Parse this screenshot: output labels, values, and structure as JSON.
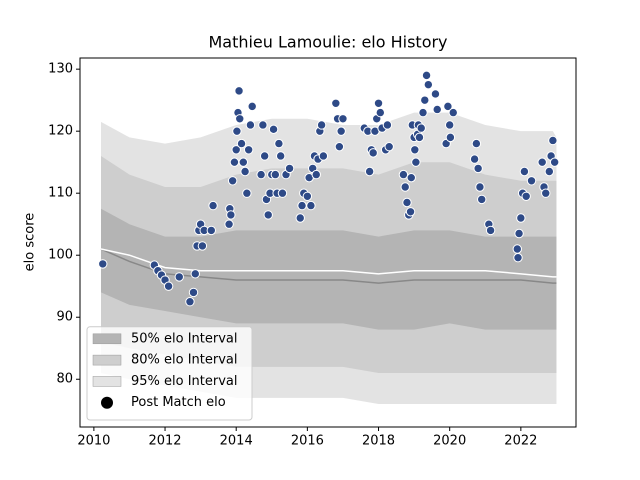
{
  "chart_data": {
    "type": "line",
    "title": "Mathieu Lamoulie: elo History",
    "ylabel": "elo score",
    "xlim": [
      2009.61,
      2023.55
    ],
    "ylim": [
      72.3,
      131.8
    ],
    "xticks": [
      2010,
      2012,
      2014,
      2016,
      2018,
      2020,
      2022
    ],
    "yticks": [
      80,
      90,
      100,
      110,
      120,
      130
    ],
    "legend": "lower left",
    "x": [
      2010.2,
      2011,
      2012,
      2013,
      2014,
      2015,
      2016,
      2017,
      2018,
      2019,
      2020,
      2021,
      2022,
      2022.9,
      2023
    ],
    "bands": [
      {
        "name": "50% elo Interval",
        "color": "#b4b4b4",
        "lower": [
          94,
          92,
          91,
          90,
          89,
          89,
          89,
          89,
          88,
          88,
          89,
          88,
          88,
          88,
          88
        ],
        "upper": [
          107.5,
          105,
          103,
          103,
          104,
          104,
          104,
          104,
          103,
          104,
          104,
          103,
          103,
          103,
          103
        ]
      },
      {
        "name": "80% elo Interval",
        "color": "#cecece",
        "lower": [
          86,
          85,
          84,
          83,
          82,
          82,
          82,
          82,
          81,
          81,
          81,
          81,
          81,
          81,
          81
        ],
        "upper": [
          116,
          113,
          111,
          111,
          113,
          114,
          114,
          114,
          113,
          115,
          115,
          113,
          112,
          112,
          112
        ]
      },
      {
        "name": "95% elo Interval",
        "color": "#e3e3e3",
        "lower": [
          81,
          80,
          79,
          78,
          77,
          77,
          77,
          77,
          76,
          76,
          76,
          76,
          76,
          76,
          76
        ],
        "upper": [
          121.5,
          119,
          118,
          119,
          121,
          122,
          122,
          121,
          121,
          123,
          123,
          121,
          120,
          120,
          119
        ]
      }
    ],
    "lines": [
      {
        "color": "#888888",
        "values": [
          101,
          99,
          97,
          96.5,
          96,
          96,
          96,
          96,
          95.5,
          96,
          96,
          96,
          96,
          95.5,
          95.5
        ]
      },
      {
        "color": "#ffffff",
        "values": [
          101,
          100,
          98,
          97.5,
          97.5,
          97.5,
          97.5,
          97.5,
          97,
          97.5,
          97.5,
          97.5,
          97,
          96.5,
          96.5
        ]
      }
    ],
    "series": [
      {
        "name": "Post Match elo",
        "color": "#2e4a87",
        "edgecolor": "#ffffff",
        "legend_color": "#000000",
        "x": [
          2010.25,
          2011.7,
          2011.8,
          2011.9,
          2012.0,
          2012.1,
          2012.4,
          2012.7,
          2012.8,
          2012.85,
          2012.9,
          2012.95,
          2013.0,
          2013.05,
          2013.1,
          2013.3,
          2013.35,
          2013.8,
          2013.82,
          2013.85,
          2013.9,
          2013.95,
          2014.0,
          2014.02,
          2014.05,
          2014.08,
          2014.1,
          2014.15,
          2014.2,
          2014.25,
          2014.3,
          2014.35,
          2014.4,
          2014.45,
          2014.7,
          2014.75,
          2014.8,
          2014.85,
          2014.9,
          2014.95,
          2015.0,
          2015.05,
          2015.1,
          2015.15,
          2015.2,
          2015.25,
          2015.3,
          2015.4,
          2015.5,
          2015.8,
          2015.85,
          2015.9,
          2016.0,
          2016.05,
          2016.1,
          2016.15,
          2016.2,
          2016.25,
          2016.3,
          2016.35,
          2016.4,
          2016.45,
          2016.8,
          2016.85,
          2016.9,
          2016.95,
          2017.0,
          2017.6,
          2017.7,
          2017.75,
          2017.8,
          2017.85,
          2017.9,
          2017.95,
          2018.0,
          2018.05,
          2018.1,
          2018.2,
          2018.25,
          2018.3,
          2018.7,
          2018.75,
          2018.8,
          2018.85,
          2018.9,
          2018.92,
          2018.95,
          2019.0,
          2019.02,
          2019.05,
          2019.1,
          2019.12,
          2019.15,
          2019.2,
          2019.25,
          2019.3,
          2019.35,
          2019.4,
          2019.6,
          2019.65,
          2019.9,
          2019.95,
          2020.0,
          2020.02,
          2020.1,
          2020.7,
          2020.75,
          2020.8,
          2020.85,
          2020.9,
          2021.1,
          2021.15,
          2021.9,
          2021.92,
          2021.95,
          2022.0,
          2022.05,
          2022.1,
          2022.15,
          2022.3,
          2022.6,
          2022.65,
          2022.7,
          2022.8,
          2022.85,
          2022.9,
          2022.95
        ],
        "values": [
          98.6,
          98.4,
          97.5,
          96.8,
          96,
          95,
          96.5,
          92.5,
          94,
          97,
          101.5,
          104,
          105,
          101.5,
          104,
          104,
          108,
          105,
          107.5,
          106.5,
          112,
          115,
          117,
          120,
          123,
          126.5,
          122,
          118,
          115,
          113.5,
          110,
          117,
          121,
          124,
          113,
          121,
          116,
          109,
          106.5,
          110,
          113,
          120.3,
          113,
          110,
          118,
          116,
          110,
          113,
          114,
          106,
          108,
          110,
          109.5,
          112.5,
          108,
          114,
          116,
          113,
          115.5,
          120,
          121,
          116,
          124.5,
          122,
          117.5,
          120,
          122,
          120.5,
          120,
          113.5,
          117,
          116.5,
          120,
          122,
          124.5,
          123,
          120.5,
          117,
          121,
          117.5,
          113,
          111,
          108.5,
          106.5,
          107,
          112.5,
          121,
          119,
          117,
          115,
          119.5,
          121,
          119,
          120.5,
          123,
          125,
          129,
          127.5,
          126,
          123.5,
          118,
          124,
          121,
          119,
          123,
          115.5,
          118,
          114,
          111,
          109,
          105,
          104,
          101,
          99.6,
          103.5,
          106,
          110,
          113.5,
          109.5,
          112,
          115,
          111,
          110,
          113.5,
          116,
          118.5,
          115
        ]
      }
    ]
  }
}
